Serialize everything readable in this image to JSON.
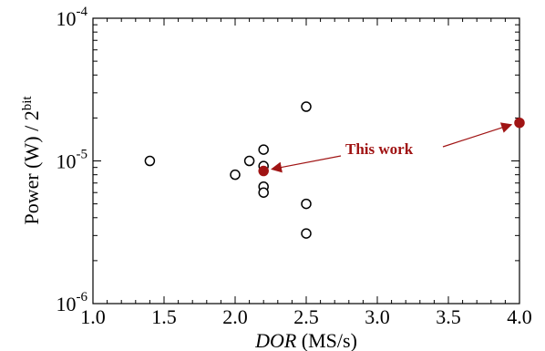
{
  "chart_data": {
    "type": "scatter",
    "xlabel_italic": "DOR",
    "xlabel_units": " (MS/s)",
    "ylabel_main": "Power (W) / 2",
    "ylabel_sup": "bit",
    "xlim": [
      1.0,
      4.0
    ],
    "ylim": [
      1e-06,
      0.0001
    ],
    "yscale": "log",
    "grid": false,
    "x_ticks": [
      {
        "value": 1.0,
        "label": "1.0"
      },
      {
        "value": 1.5,
        "label": "1.5"
      },
      {
        "value": 2.0,
        "label": "2.0"
      },
      {
        "value": 2.5,
        "label": "2.5"
      },
      {
        "value": 3.0,
        "label": "3.0"
      },
      {
        "value": 3.5,
        "label": "3.5"
      },
      {
        "value": 4.0,
        "label": "4.0"
      }
    ],
    "y_ticks": [
      {
        "value": 1e-06,
        "base": "10",
        "exp": "-6"
      },
      {
        "value": 1e-05,
        "base": "10",
        "exp": "-5"
      },
      {
        "value": 0.0001,
        "base": "10",
        "exp": "-4"
      }
    ],
    "series": [
      {
        "marker": "open-circle",
        "color": "#000000",
        "points": [
          {
            "x": 1.4,
            "y": 1e-05
          },
          {
            "x": 2.0,
            "y": 8e-06
          },
          {
            "x": 2.1,
            "y": 1e-05
          },
          {
            "x": 2.2,
            "y": 1.2e-05
          },
          {
            "x": 2.2,
            "y": 9.2e-06
          },
          {
            "x": 2.2,
            "y": 6.6e-06
          },
          {
            "x": 2.2,
            "y": 6e-06
          },
          {
            "x": 2.5,
            "y": 2.4e-05
          },
          {
            "x": 2.5,
            "y": 5e-06
          },
          {
            "x": 2.5,
            "y": 3.1e-06
          }
        ]
      },
      {
        "marker": "filled-circle",
        "color": "#a01414",
        "points": [
          {
            "x": 2.2,
            "y": 8.5e-06
          },
          {
            "x": 4.0,
            "y": 1.85e-05
          }
        ]
      }
    ],
    "annotation": {
      "text": "This work",
      "color": "#a01414"
    }
  }
}
